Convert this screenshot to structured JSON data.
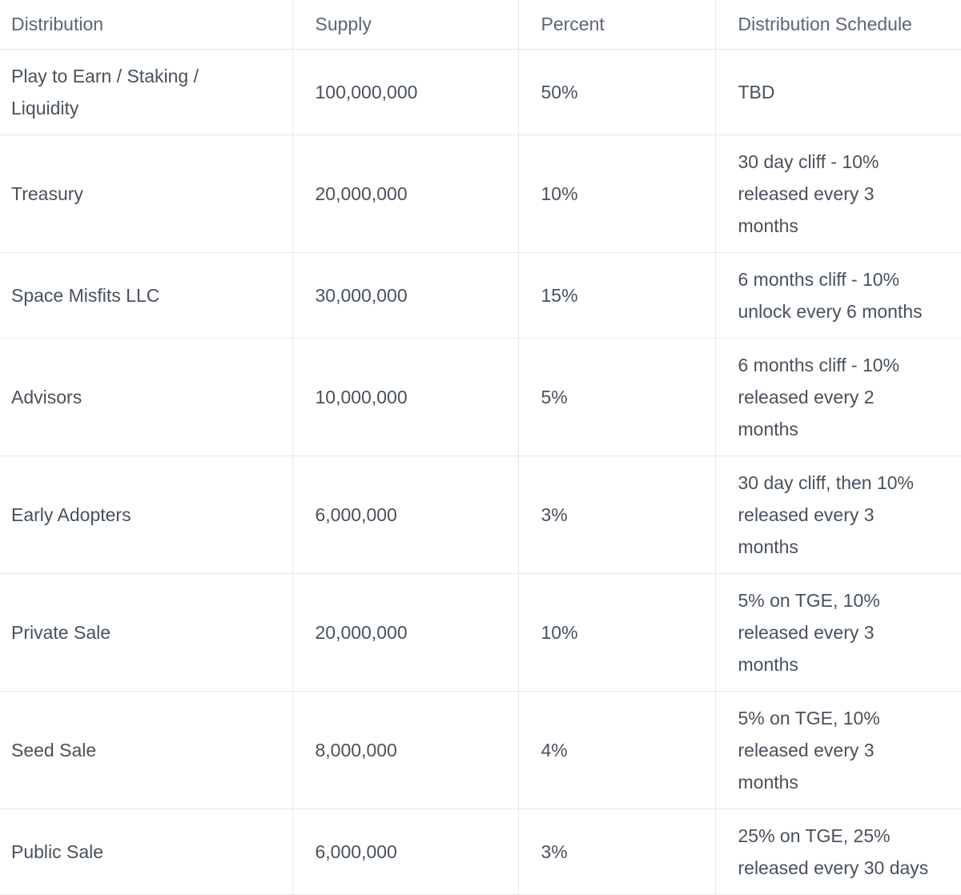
{
  "colors": {
    "background": "#ffffff",
    "border": "#e5e8eb",
    "header_text": "#5c6671",
    "body_text": "#48525c"
  },
  "table": {
    "columns": [
      {
        "key": "distribution",
        "label": "Distribution"
      },
      {
        "key": "supply",
        "label": "Supply"
      },
      {
        "key": "percent",
        "label": "Percent"
      },
      {
        "key": "schedule",
        "label": "Distribution Schedule"
      }
    ],
    "rows": [
      {
        "distribution": "Play to Earn / Staking /\nLiquidity",
        "supply": "100,000,000",
        "percent": "50%",
        "schedule": "TBD"
      },
      {
        "distribution": "Treasury",
        "supply": "20,000,000",
        "percent": "10%",
        "schedule": "30 day cliff - 10%\nreleased every 3\nmonths"
      },
      {
        "distribution": "Space Misfits LLC",
        "supply": "30,000,000",
        "percent": "15%",
        "schedule": "6 months cliff - 10%\nunlock every 6 months"
      },
      {
        "distribution": "Advisors",
        "supply": "10,000,000",
        "percent": "5%",
        "schedule": "6 months cliff - 10%\nreleased every 2\nmonths"
      },
      {
        "distribution": "Early Adopters",
        "supply": "6,000,000",
        "percent": "3%",
        "schedule": "30 day cliff, then 10%\nreleased every 3\nmonths"
      },
      {
        "distribution": "Private Sale",
        "supply": "20,000,000",
        "percent": "10%",
        "schedule": "5% on TGE, 10%\nreleased every 3\nmonths"
      },
      {
        "distribution": "Seed Sale",
        "supply": "8,000,000",
        "percent": "4%",
        "schedule": "5% on TGE, 10%\nreleased every 3\nmonths"
      },
      {
        "distribution": "Public Sale",
        "supply": "6,000,000",
        "percent": "3%",
        "schedule": "25% on TGE, 25%\nreleased every 30 days"
      }
    ]
  }
}
